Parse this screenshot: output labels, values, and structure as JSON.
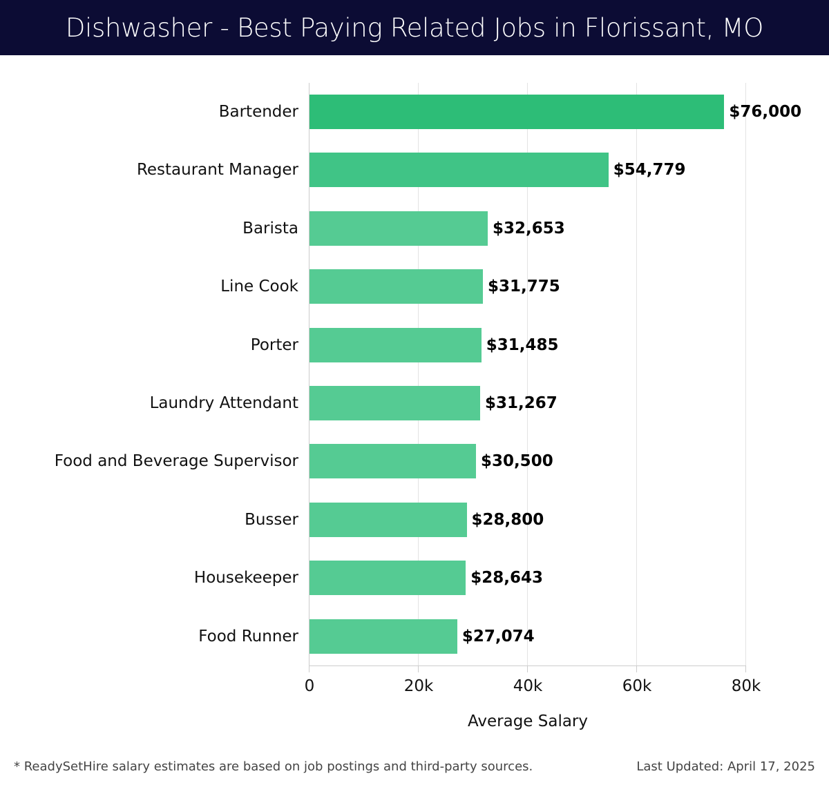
{
  "header": {
    "title": "Dishwasher - Best Paying Related Jobs in Florissant, MO"
  },
  "colors": {
    "header_bg": "#0c0c34",
    "bar_top": "#2dbd77",
    "bar_second": "#40c486",
    "bar_rest": "#55cb93"
  },
  "footer": {
    "note": "* ReadySetHire salary estimates are based on job postings and third-party sources.",
    "updated": "Last Updated: April 17, 2025"
  },
  "chart_data": {
    "type": "bar",
    "orientation": "horizontal",
    "title": "Dishwasher - Best Paying Related Jobs in Florissant, MO",
    "xlabel": "Average Salary",
    "ylabel": "",
    "xlim": [
      0,
      80000
    ],
    "xticks": [
      0,
      20000,
      40000,
      60000,
      80000
    ],
    "xtick_labels": [
      "0",
      "20k",
      "40k",
      "60k",
      "80k"
    ],
    "grid": "vertical",
    "categories": [
      "Bartender",
      "Restaurant Manager",
      "Barista",
      "Line Cook",
      "Porter",
      "Laundry Attendant",
      "Food and Beverage Supervisor",
      "Busser",
      "Housekeeper",
      "Food Runner"
    ],
    "values": [
      76000,
      54779,
      32653,
      31775,
      31485,
      31267,
      30500,
      28800,
      28643,
      27074
    ],
    "value_labels": [
      "$76,000",
      "$54,779",
      "$32,653",
      "$31,775",
      "$31,485",
      "$31,267",
      "$30,500",
      "$28,800",
      "$28,643",
      "$27,074"
    ]
  }
}
